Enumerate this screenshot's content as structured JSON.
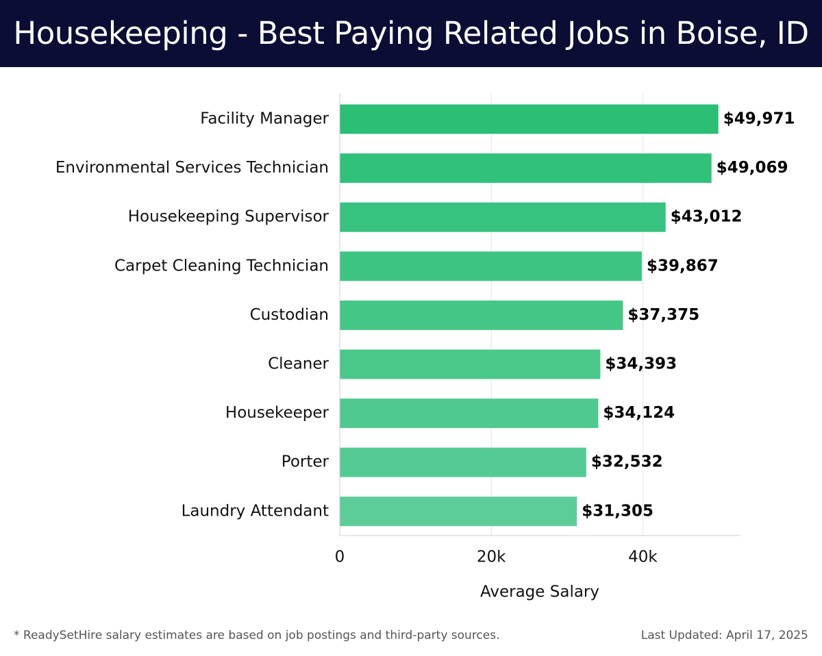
{
  "header": {
    "title": "Housekeeping - Best Paying Related Jobs in Boise, ID"
  },
  "chart_data": {
    "type": "bar",
    "orientation": "horizontal",
    "title": "Housekeeping - Best Paying Related Jobs in Boise, ID",
    "xlabel": "Average Salary",
    "ylabel": "",
    "categories": [
      "Facility Manager",
      "Environmental Services Technician",
      "Housekeeping Supervisor",
      "Carpet Cleaning Technician",
      "Custodian",
      "Cleaner",
      "Housekeeper",
      "Porter",
      "Laundry Attendant"
    ],
    "values": [
      49971,
      49069,
      43012,
      39867,
      37375,
      34393,
      34124,
      32532,
      31305
    ],
    "value_labels": [
      "$49,971",
      "$49,069",
      "$43,012",
      "$39,867",
      "$37,375",
      "$34,393",
      "$34,124",
      "$32,532",
      "$31,305"
    ],
    "xlim": [
      0,
      52800
    ],
    "xticks": [
      0,
      20000,
      40000
    ],
    "xtick_labels": [
      "0",
      "20k",
      "40k"
    ],
    "grid": "vertical",
    "bar_color_start": "#2bbf76",
    "bar_color_end": "#5ccc98"
  },
  "footer": {
    "note": "* ReadySetHire salary estimates are based on job postings and third-party sources.",
    "updated": "Last Updated: April 17, 2025"
  }
}
